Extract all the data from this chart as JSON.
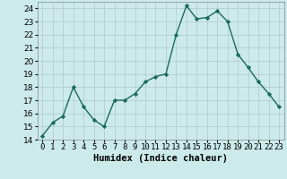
{
  "x": [
    0,
    1,
    2,
    3,
    4,
    5,
    6,
    7,
    8,
    9,
    10,
    11,
    12,
    13,
    14,
    15,
    16,
    17,
    18,
    19,
    20,
    21,
    22,
    23
  ],
  "y": [
    14.3,
    15.3,
    15.8,
    18.0,
    16.5,
    15.5,
    15.0,
    17.0,
    17.0,
    17.5,
    18.4,
    18.8,
    19.0,
    22.0,
    24.2,
    23.2,
    23.3,
    23.8,
    23.0,
    20.5,
    19.5,
    18.4,
    17.5,
    16.5
  ],
  "line_color": "#1a6b5a",
  "marker": "D",
  "markersize": 2.2,
  "linewidth": 1.0,
  "bg_color": "#cceaea",
  "grid_color": "#b0c8c8",
  "xlabel": "Humidex (Indice chaleur)",
  "xlim": [
    -0.5,
    23.5
  ],
  "ylim": [
    14,
    24.5
  ],
  "yticks": [
    14,
    15,
    16,
    17,
    18,
    19,
    20,
    21,
    22,
    23,
    24
  ],
  "xtick_labels": [
    "0",
    "1",
    "2",
    "3",
    "4",
    "5",
    "6",
    "7",
    "8",
    "9",
    "10",
    "11",
    "12",
    "13",
    "14",
    "15",
    "16",
    "17",
    "18",
    "19",
    "20",
    "21",
    "22",
    "23"
  ],
  "xlabel_fontsize": 7.5,
  "tick_fontsize": 6.5
}
